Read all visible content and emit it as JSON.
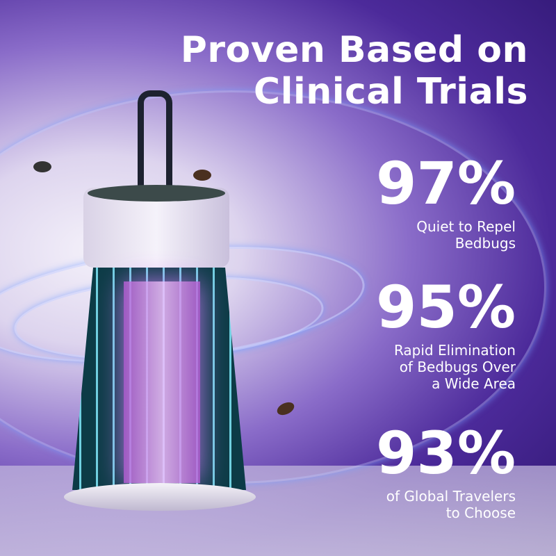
{
  "headline": {
    "line1": "Proven Based on",
    "line2": "Clinical Trials"
  },
  "stats": [
    {
      "percent": "97%",
      "line1": "Quiet to Repel",
      "line2": "Bedbugs"
    },
    {
      "percent": "95%",
      "line1": "Rapid Elimination",
      "line2": "of Bedbugs Over",
      "line3": "a Wide Area"
    },
    {
      "percent": "93%",
      "line1": "of Global Travelers",
      "line2": "to Choose"
    }
  ],
  "colors": {
    "background": "#4c2a9a",
    "text": "#ffffff",
    "uv_light": "#d080ff"
  }
}
